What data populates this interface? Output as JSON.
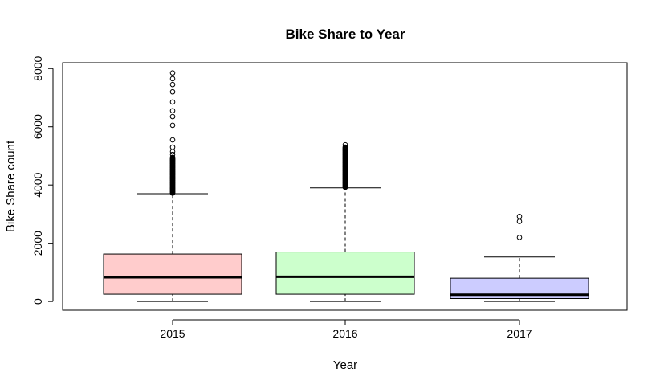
{
  "chart_data": {
    "type": "boxplot",
    "title": "Bike Share to Year",
    "xlabel": "Year",
    "ylabel": "Bike Share count",
    "categories": [
      "2015",
      "2016",
      "2017"
    ],
    "colors": [
      "#FFCCCC",
      "#CCFFCC",
      "#CCCCFF"
    ],
    "ylim": [
      -300,
      8200
    ],
    "yticks": [
      0,
      2000,
      4000,
      6000,
      8000
    ],
    "grid": false,
    "legend": "none",
    "boxes": [
      {
        "category": "2015",
        "min": 0,
        "q1": 250,
        "median": 830,
        "q3": 1630,
        "whisker_high": 3700,
        "outliers_dense_range": [
          3720,
          4950
        ],
        "outliers": [
          5050,
          5150,
          5300,
          5550,
          6050,
          6350,
          6550,
          6850,
          7200,
          7450,
          7650,
          7850
        ]
      },
      {
        "category": "2016",
        "min": 0,
        "q1": 250,
        "median": 850,
        "q3": 1700,
        "whisker_high": 3900,
        "outliers_dense_range": [
          3920,
          5300
        ],
        "outliers": [
          5380
        ]
      },
      {
        "category": "2017",
        "min": 0,
        "q1": 100,
        "median": 230,
        "q3": 800,
        "whisker_high": 1530,
        "outliers_dense_range": null,
        "outliers": [
          2200,
          2750,
          2920
        ]
      }
    ]
  }
}
